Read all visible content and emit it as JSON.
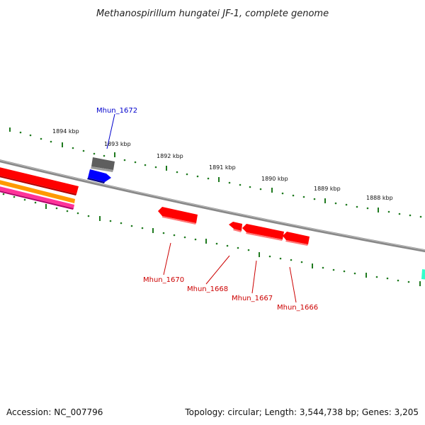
{
  "title": "Methanospirillum hungatei JF-1, complete genome",
  "accession": "Accession: NC_007796",
  "topology": "Topology: circular; Length: 3,544,738 bp; Genes: 3,205",
  "colors": {
    "backbone": "#7a7a7a",
    "tick": "#1f7a1f",
    "forward_gene": "#ff0000",
    "reverse_gene": "#ff0000",
    "label_forward": "#0000cc",
    "label_reverse": "#cc0000",
    "gene_gray": "#666666",
    "gene_blue": "#0000ff",
    "gene_orange": "#ff9900",
    "gene_pink": "#ff3399",
    "gene_teal": "#33ffcc"
  },
  "scale": {
    "unit": "kbp",
    "labels": [
      "1894 kbp",
      "1893 kbp",
      "1892 kbp",
      "1891 kbp",
      "1890 kbp",
      "1889 kbp",
      "1888 kbp"
    ]
  },
  "genes": [
    {
      "name": "Mhun_1672",
      "strand": "forward",
      "color_key": "gene_blue"
    },
    {
      "name": "Mhun_1670",
      "strand": "reverse",
      "color_key": "reverse_gene"
    },
    {
      "name": "Mhun_1668",
      "strand": "reverse",
      "color_key": "reverse_gene"
    },
    {
      "name": "Mhun_1667",
      "strand": "reverse",
      "color_key": "reverse_gene"
    },
    {
      "name": "Mhun_1666",
      "strand": "reverse",
      "color_key": "reverse_gene"
    }
  ]
}
